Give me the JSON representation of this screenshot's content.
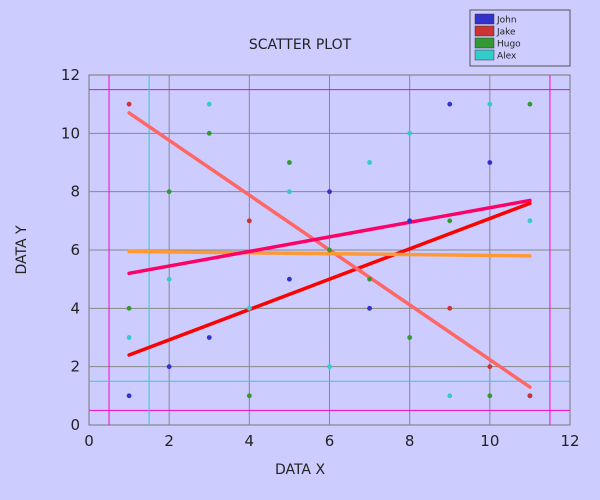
{
  "chart_data": {
    "type": "scatter",
    "title": "SCATTER PLOT",
    "xlabel": "DATA X",
    "ylabel": "DATA Y",
    "xlim": [
      0,
      12
    ],
    "ylim": [
      0,
      12
    ],
    "xticks": [
      0,
      2,
      4,
      6,
      8,
      10,
      12
    ],
    "yticks": [
      0,
      2,
      4,
      6,
      8,
      10,
      12
    ],
    "grid": true,
    "legend_position": "top-right",
    "series": [
      {
        "name": "John",
        "color": "#3333cc",
        "points": [
          [
            1,
            1
          ],
          [
            2,
            2
          ],
          [
            3,
            3
          ],
          [
            5,
            5
          ],
          [
            6,
            8
          ],
          [
            7,
            4
          ],
          [
            9,
            11
          ],
          [
            10,
            9
          ],
          [
            8,
            7
          ],
          [
            11,
            1
          ]
        ]
      },
      {
        "name": "Jake",
        "color": "#cc3333",
        "points": [
          [
            1,
            11
          ],
          [
            4,
            7
          ],
          [
            9,
            4
          ],
          [
            10,
            2
          ],
          [
            11,
            1
          ]
        ]
      },
      {
        "name": "Hugo",
        "color": "#339933",
        "points": [
          [
            1,
            4
          ],
          [
            2,
            8
          ],
          [
            3,
            10
          ],
          [
            4,
            1
          ],
          [
            5,
            9
          ],
          [
            6,
            6
          ],
          [
            7,
            5
          ],
          [
            8,
            3
          ],
          [
            9,
            7
          ],
          [
            10,
            1
          ],
          [
            11,
            11
          ]
        ]
      },
      {
        "name": "Alex",
        "color": "#33cccc",
        "points": [
          [
            1,
            3
          ],
          [
            2,
            5
          ],
          [
            3,
            11
          ],
          [
            4,
            4
          ],
          [
            5,
            8
          ],
          [
            6,
            2
          ],
          [
            7,
            9
          ],
          [
            8,
            10
          ],
          [
            9,
            1
          ],
          [
            10,
            11
          ],
          [
            11,
            7
          ]
        ]
      }
    ],
    "trend_lines": [
      {
        "color": "#ff0000",
        "from": [
          1,
          2.4
        ],
        "to": [
          11,
          7.6
        ]
      },
      {
        "color": "#ff6666",
        "from": [
          1,
          10.7
        ],
        "to": [
          11,
          1.3
        ]
      },
      {
        "color": "#ff9933",
        "from": [
          1,
          5.95
        ],
        "to": [
          11,
          5.8
        ]
      },
      {
        "color": "#ff0066",
        "from": [
          1,
          5.2
        ],
        "to": [
          11,
          7.7
        ]
      }
    ],
    "reference_lines": [
      {
        "orientation": "vertical",
        "value": 0.5,
        "color": "#ff00cc"
      },
      {
        "orientation": "vertical",
        "value": 11.5,
        "color": "#ff00cc"
      },
      {
        "orientation": "horizontal",
        "value": 0.5,
        "color": "#ff00cc"
      },
      {
        "orientation": "horizontal",
        "value": 11.5,
        "color": "#ff00cc"
      },
      {
        "orientation": "vertical",
        "value": 1.5,
        "color": "#33cccc"
      },
      {
        "orientation": "horizontal",
        "value": 1.5,
        "color": "#33cccc"
      }
    ]
  }
}
